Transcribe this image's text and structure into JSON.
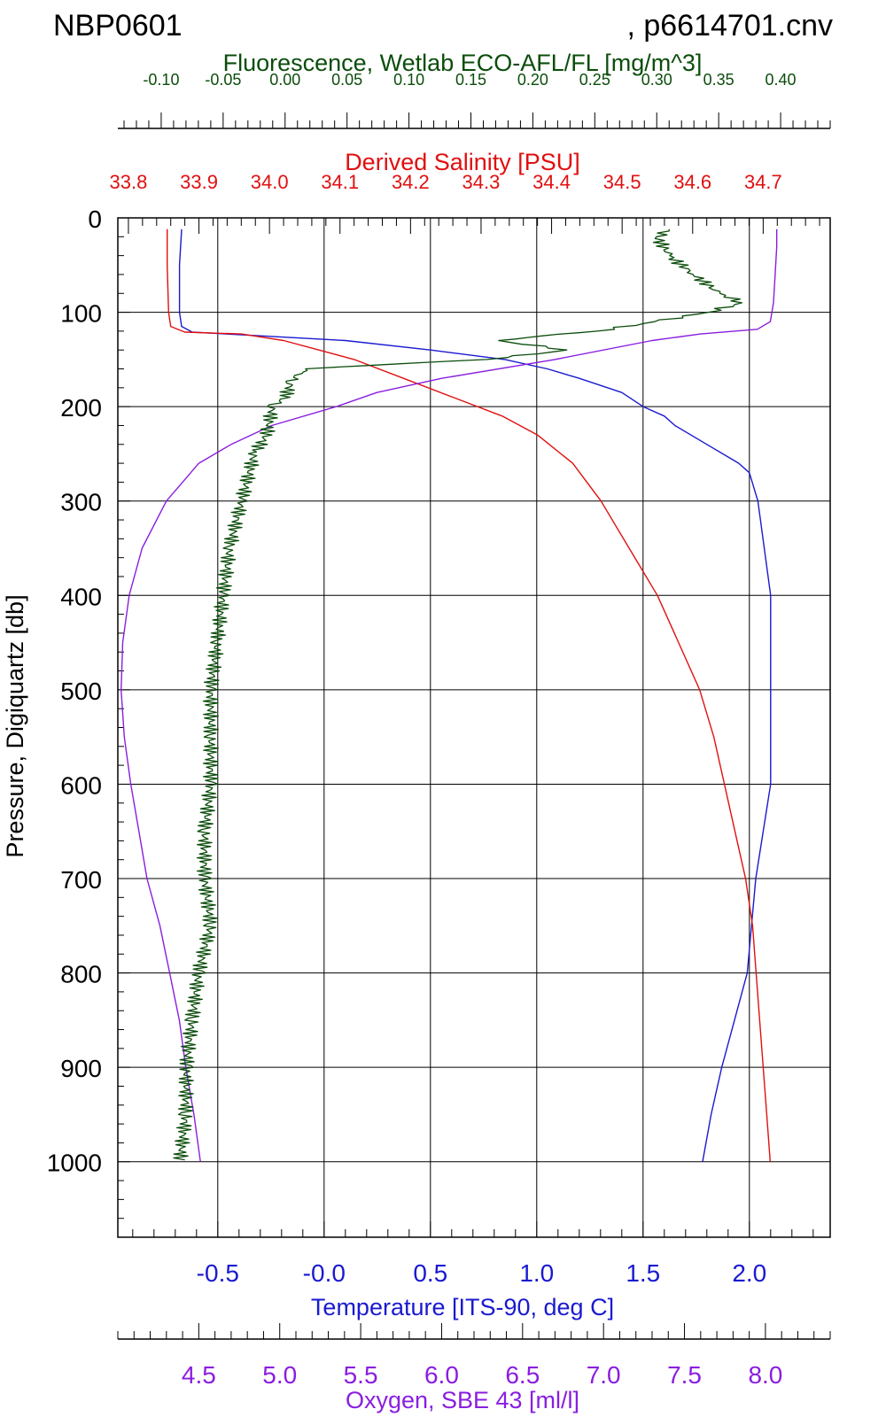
{
  "header": {
    "cruise": "NBP0601",
    "file": ", p6614701.cnv"
  },
  "colors": {
    "fluorescence": "#0b4d0b",
    "salinity": "#e01010",
    "temperature": "#1a1ad0",
    "oxygen": "#8a1ee0",
    "axis": "#000000"
  },
  "chart_data": {
    "type": "line",
    "title": "NBP0601 , p6614701.cnv",
    "grid": true,
    "y_axis": {
      "label": "Pressure, Digiquartz [db]",
      "range": [
        0,
        1080
      ],
      "inverted": true,
      "ticks": [
        "0",
        "100",
        "200",
        "300",
        "400",
        "500",
        "600",
        "700",
        "800",
        "900",
        "1000"
      ],
      "tick_values": [
        0,
        100,
        200,
        300,
        400,
        500,
        600,
        700,
        800,
        900,
        1000
      ]
    },
    "x_axes": {
      "fluorescence": {
        "label": "Fluorescence, Wetlab ECO-AFL/FL [mg/m^3]",
        "range": [
          -0.135,
          0.44
        ],
        "ticks": [
          "-0.10",
          "-0.05",
          "0.00",
          "0.05",
          "0.10",
          "0.15",
          "0.20",
          "0.25",
          "0.30",
          "0.35",
          "0.40"
        ],
        "tick_values": [
          -0.1,
          -0.05,
          0.0,
          0.05,
          0.1,
          0.15,
          0.2,
          0.25,
          0.3,
          0.35,
          0.4
        ]
      },
      "salinity": {
        "label": "Derived Salinity [PSU]",
        "range": [
          33.785,
          34.795
        ],
        "ticks": [
          "33.8",
          "33.9",
          "34.0",
          "34.1",
          "34.2",
          "34.3",
          "34.4",
          "34.5",
          "34.6",
          "34.7"
        ],
        "tick_values": [
          33.8,
          33.9,
          34.0,
          34.1,
          34.2,
          34.3,
          34.4,
          34.5,
          34.6,
          34.7
        ]
      },
      "temperature": {
        "label": "Temperature [ITS-90, deg C]",
        "range": [
          -0.97,
          2.38
        ],
        "ticks": [
          "-0.5",
          "-0.0",
          "0.5",
          "1.0",
          "1.5",
          "2.0"
        ],
        "tick_values": [
          -0.5,
          0.0,
          0.5,
          1.0,
          1.5,
          2.0
        ]
      },
      "oxygen": {
        "label": "Oxygen, SBE 43 [ml/l]",
        "range": [
          4.0,
          8.4
        ],
        "ticks": [
          "4.5",
          "5.0",
          "5.5",
          "6.0",
          "6.5",
          "7.0",
          "7.5",
          "8.0"
        ],
        "tick_values": [
          4.5,
          5.0,
          5.5,
          6.0,
          6.5,
          7.0,
          7.5,
          8.0
        ]
      }
    },
    "series": [
      {
        "key": "temperature",
        "pressure": [
          12,
          50,
          100,
          115,
          121,
          125,
          130,
          140,
          150,
          160,
          170,
          185,
          200,
          210,
          220,
          240,
          260,
          270,
          300,
          400,
          500,
          600,
          700,
          750,
          800,
          850,
          900,
          950,
          1000
        ],
        "values": [
          -0.67,
          -0.68,
          -0.68,
          -0.67,
          -0.62,
          -0.3,
          0.1,
          0.5,
          0.85,
          1.05,
          1.2,
          1.4,
          1.5,
          1.6,
          1.65,
          1.8,
          1.95,
          2.0,
          2.04,
          2.1,
          2.1,
          2.1,
          2.03,
          2.01,
          1.99,
          1.93,
          1.87,
          1.82,
          1.78
        ]
      },
      {
        "key": "salinity",
        "pressure": [
          12,
          50,
          100,
          115,
          121,
          123,
          130,
          150,
          170,
          190,
          210,
          230,
          260,
          300,
          350,
          400,
          450,
          500,
          550,
          600,
          650,
          700,
          750,
          800,
          850,
          900,
          950,
          1000
        ],
        "values": [
          33.855,
          33.855,
          33.857,
          33.86,
          33.88,
          33.96,
          34.02,
          34.12,
          34.19,
          34.26,
          34.33,
          34.38,
          34.43,
          34.47,
          34.51,
          34.55,
          34.58,
          34.61,
          34.63,
          34.645,
          34.66,
          34.675,
          34.685,
          34.69,
          34.695,
          34.7,
          34.705,
          34.71
        ]
      },
      {
        "key": "oxygen",
        "pressure": [
          12,
          30,
          60,
          90,
          110,
          118,
          123,
          130,
          150,
          170,
          185,
          200,
          220,
          240,
          260,
          280,
          300,
          350,
          400,
          450,
          500,
          550,
          600,
          650,
          700,
          750,
          800,
          850,
          900,
          950,
          1000
        ],
        "values": [
          8.07,
          8.07,
          8.06,
          8.05,
          8.03,
          7.95,
          7.6,
          7.3,
          6.7,
          6.0,
          5.6,
          5.35,
          4.95,
          4.7,
          4.5,
          4.4,
          4.3,
          4.15,
          4.07,
          4.03,
          4.02,
          4.04,
          4.08,
          4.13,
          4.18,
          4.26,
          4.32,
          4.38,
          4.42,
          4.47,
          4.51
        ]
      },
      {
        "key": "fluorescence",
        "pressure": [
          12,
          20,
          40,
          60,
          80,
          90,
          100,
          110,
          120,
          125,
          130,
          140,
          150,
          155,
          158,
          160,
          165,
          175,
          190,
          200,
          230,
          250,
          300,
          350,
          400,
          450,
          500,
          550,
          600,
          650,
          700,
          750,
          800,
          850,
          900,
          950,
          1000
        ],
        "values": [
          0.31,
          0.3,
          0.31,
          0.33,
          0.35,
          0.37,
          0.34,
          0.3,
          0.25,
          0.21,
          0.17,
          0.23,
          0.16,
          0.09,
          0.04,
          0.02,
          0.01,
          0.005,
          0.0,
          -0.01,
          -0.015,
          -0.025,
          -0.035,
          -0.045,
          -0.05,
          -0.055,
          -0.06,
          -0.06,
          -0.06,
          -0.065,
          -0.065,
          -0.06,
          -0.07,
          -0.075,
          -0.08,
          -0.08,
          -0.085
        ]
      }
    ]
  }
}
